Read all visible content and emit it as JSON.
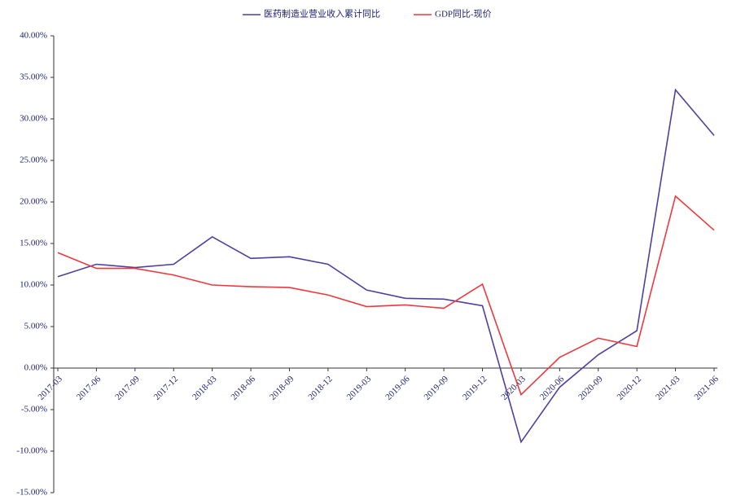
{
  "chart_data": {
    "type": "line",
    "categories": [
      "2017-03",
      "2017-06",
      "2017-09",
      "2017-12",
      "2018-03",
      "2018-06",
      "2018-09",
      "2018-12",
      "2019-03",
      "2019-06",
      "2019-09",
      "2019-12",
      "2020-03",
      "2020-06",
      "2020-09",
      "2020-12",
      "2021-03",
      "2021-06"
    ],
    "series": [
      {
        "name": "医药制造业营业收入累计同比",
        "color": "#4f3f9e",
        "values": [
          11.0,
          12.5,
          12.1,
          12.5,
          15.8,
          13.2,
          13.4,
          12.5,
          9.4,
          8.4,
          8.3,
          7.5,
          -8.9,
          -2.3,
          1.6,
          4.5,
          33.5,
          28.0
        ]
      },
      {
        "name": "GDP同比-现价",
        "color": "#f0373c",
        "values": [
          13.9,
          12.0,
          12.0,
          11.2,
          10.0,
          9.8,
          9.7,
          8.8,
          7.4,
          7.6,
          7.2,
          10.1,
          -3.2,
          1.3,
          3.6,
          2.6,
          20.7,
          16.6
        ]
      }
    ],
    "ylim": [
      -15,
      40
    ],
    "yticks": [
      {
        "value": -15,
        "label": "-15.00%"
      },
      {
        "value": -10,
        "label": "-10.00%"
      },
      {
        "value": -5,
        "label": "-5.00%"
      },
      {
        "value": 0,
        "label": "0.00%"
      },
      {
        "value": 5,
        "label": "5.00%"
      },
      {
        "value": 10,
        "label": "10.00%"
      },
      {
        "value": 15,
        "label": "15.00%"
      },
      {
        "value": 20,
        "label": "20.00%"
      },
      {
        "value": 25,
        "label": "25.00%"
      },
      {
        "value": 30,
        "label": "30.00%"
      },
      {
        "value": 35,
        "label": "35.00%"
      },
      {
        "value": 40,
        "label": "40.00%"
      }
    ],
    "grid": false,
    "legend": "top"
  }
}
